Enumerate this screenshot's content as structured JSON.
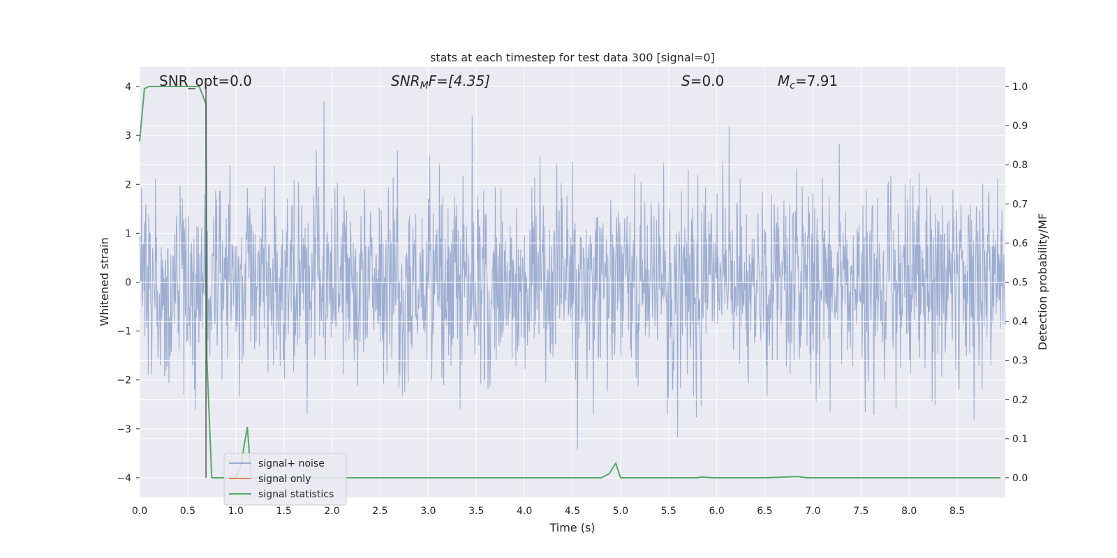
{
  "chart_data": {
    "type": "line",
    "title": "stats at each timestep for test data 300 [signal=0]",
    "xlabel": "Time (s)",
    "ylabel_left": "Whitened strain",
    "ylabel_right": "Detection probability/MF",
    "xlim": [
      0.0,
      9.0
    ],
    "ylim_left": [
      -4.4,
      4.4
    ],
    "ylim_right": [
      -0.05,
      1.05
    ],
    "x_ticks": [
      "0.0",
      "0.5",
      "1.0",
      "1.5",
      "2.0",
      "2.5",
      "3.0",
      "3.5",
      "4.0",
      "4.5",
      "5.0",
      "5.5",
      "6.0",
      "6.5",
      "7.0",
      "7.5",
      "8.0",
      "8.5"
    ],
    "y_left_ticks": [
      "4",
      "3",
      "2",
      "1",
      "0",
      "−1",
      "−2",
      "−3",
      "−4"
    ],
    "y_right_ticks": [
      "1.0",
      "0.9",
      "0.8",
      "0.7",
      "0.6",
      "0.5",
      "0.4",
      "0.3",
      "0.2",
      "0.1",
      "0.0"
    ],
    "grid": true,
    "legend_placement": "lower-left",
    "annotations": {
      "snr_opt": "SNR_opt=0.0",
      "snr_mf_sym": "SNR",
      "snr_mf_sub": "M",
      "snr_mf_rest": "F=[4.35]",
      "s_sym": "S",
      "s_rest": "=0.0",
      "mc_sym": "M",
      "mc_sub": "c",
      "mc_rest": "=7.91"
    },
    "vline_x": 0.69,
    "series": [
      {
        "name": "signal+ noise",
        "color": "#98aacf",
        "description_values": "whitened strain noise, amplitude roughly within [-4, 4], mostly within [-2, 2]",
        "sample_rate_points": 1800
      },
      {
        "name": "signal only",
        "color": "#dd8452",
        "x": [],
        "y": []
      },
      {
        "name": "signal statistics",
        "color": "#55a868",
        "x": [
          0.0,
          0.05,
          0.1,
          0.2,
          0.3,
          0.4,
          0.5,
          0.6,
          0.62,
          0.69,
          0.7,
          0.75,
          0.9,
          1.0,
          1.05,
          1.12,
          1.16,
          1.25,
          2.0,
          3.0,
          4.0,
          4.8,
          4.88,
          4.95,
          5.0,
          5.5,
          5.8,
          5.85,
          5.95,
          6.5,
          6.85,
          6.9,
          6.95,
          7.5,
          8.0,
          8.5,
          8.95
        ],
        "y": [
          0.86,
          0.995,
          1.0,
          1.0,
          1.0,
          1.0,
          1.0,
          1.0,
          1.0,
          0.955,
          0.3,
          0.0,
          0.0,
          0.0,
          0.03,
          0.13,
          0.0,
          0.0,
          0.0,
          0.0,
          0.0,
          0.0,
          0.01,
          0.037,
          0.0,
          0.0,
          0.0,
          0.002,
          0.0,
          0.0,
          0.003,
          0.001,
          0.0,
          0.0,
          0.0,
          0.0,
          0.0
        ]
      }
    ]
  }
}
